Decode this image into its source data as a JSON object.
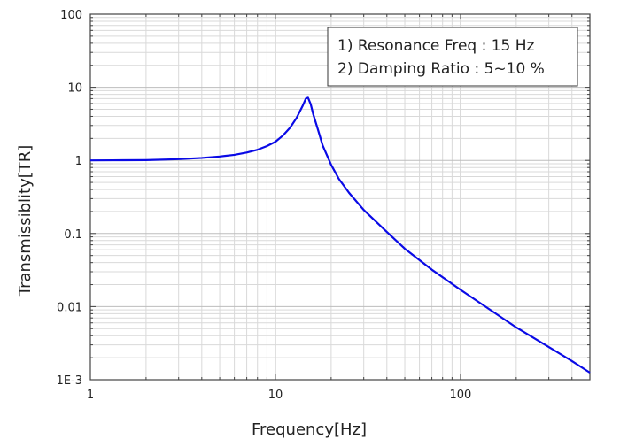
{
  "chart_data": {
    "type": "line",
    "xlabel": "Frequency[Hz]",
    "ylabel": "Transmissiblity[TR]",
    "x_scale": "log",
    "y_scale": "log",
    "xlim": [
      1,
      500
    ],
    "ylim": [
      0.001,
      100
    ],
    "x_ticks": [
      {
        "value": 1,
        "label": "1"
      },
      {
        "value": 10,
        "label": "10"
      },
      {
        "value": 100,
        "label": "100"
      }
    ],
    "y_ticks": [
      {
        "value": 0.001,
        "label": "1E-3"
      },
      {
        "value": 0.01,
        "label": "0.01"
      },
      {
        "value": 0.1,
        "label": "0.1"
      },
      {
        "value": 1,
        "label": "1"
      },
      {
        "value": 10,
        "label": "10"
      },
      {
        "value": 100,
        "label": "100"
      }
    ],
    "grid": true,
    "annotations": [
      "1) Resonance Freq : 15 Hz",
      "2) Damping Ratio : 5~10 %"
    ],
    "annotation_position": "top-right",
    "series": [
      {
        "color": "#0a0ae6",
        "x": [
          1,
          1.5,
          2,
          3,
          4,
          5,
          6,
          7,
          8,
          9,
          10,
          11,
          12,
          13,
          14,
          14.6,
          15,
          15.5,
          16,
          17,
          18,
          20,
          22,
          25,
          30,
          40,
          50,
          70,
          100,
          150,
          200,
          300,
          400,
          500
        ],
        "y": [
          1.0,
          1.005,
          1.01,
          1.04,
          1.08,
          1.13,
          1.19,
          1.28,
          1.4,
          1.57,
          1.8,
          2.2,
          2.8,
          3.8,
          5.5,
          7.0,
          7.2,
          5.9,
          4.3,
          2.6,
          1.6,
          0.87,
          0.56,
          0.36,
          0.21,
          0.105,
          0.062,
          0.032,
          0.017,
          0.0085,
          0.0052,
          0.0028,
          0.0018,
          0.00125
        ]
      }
    ]
  }
}
